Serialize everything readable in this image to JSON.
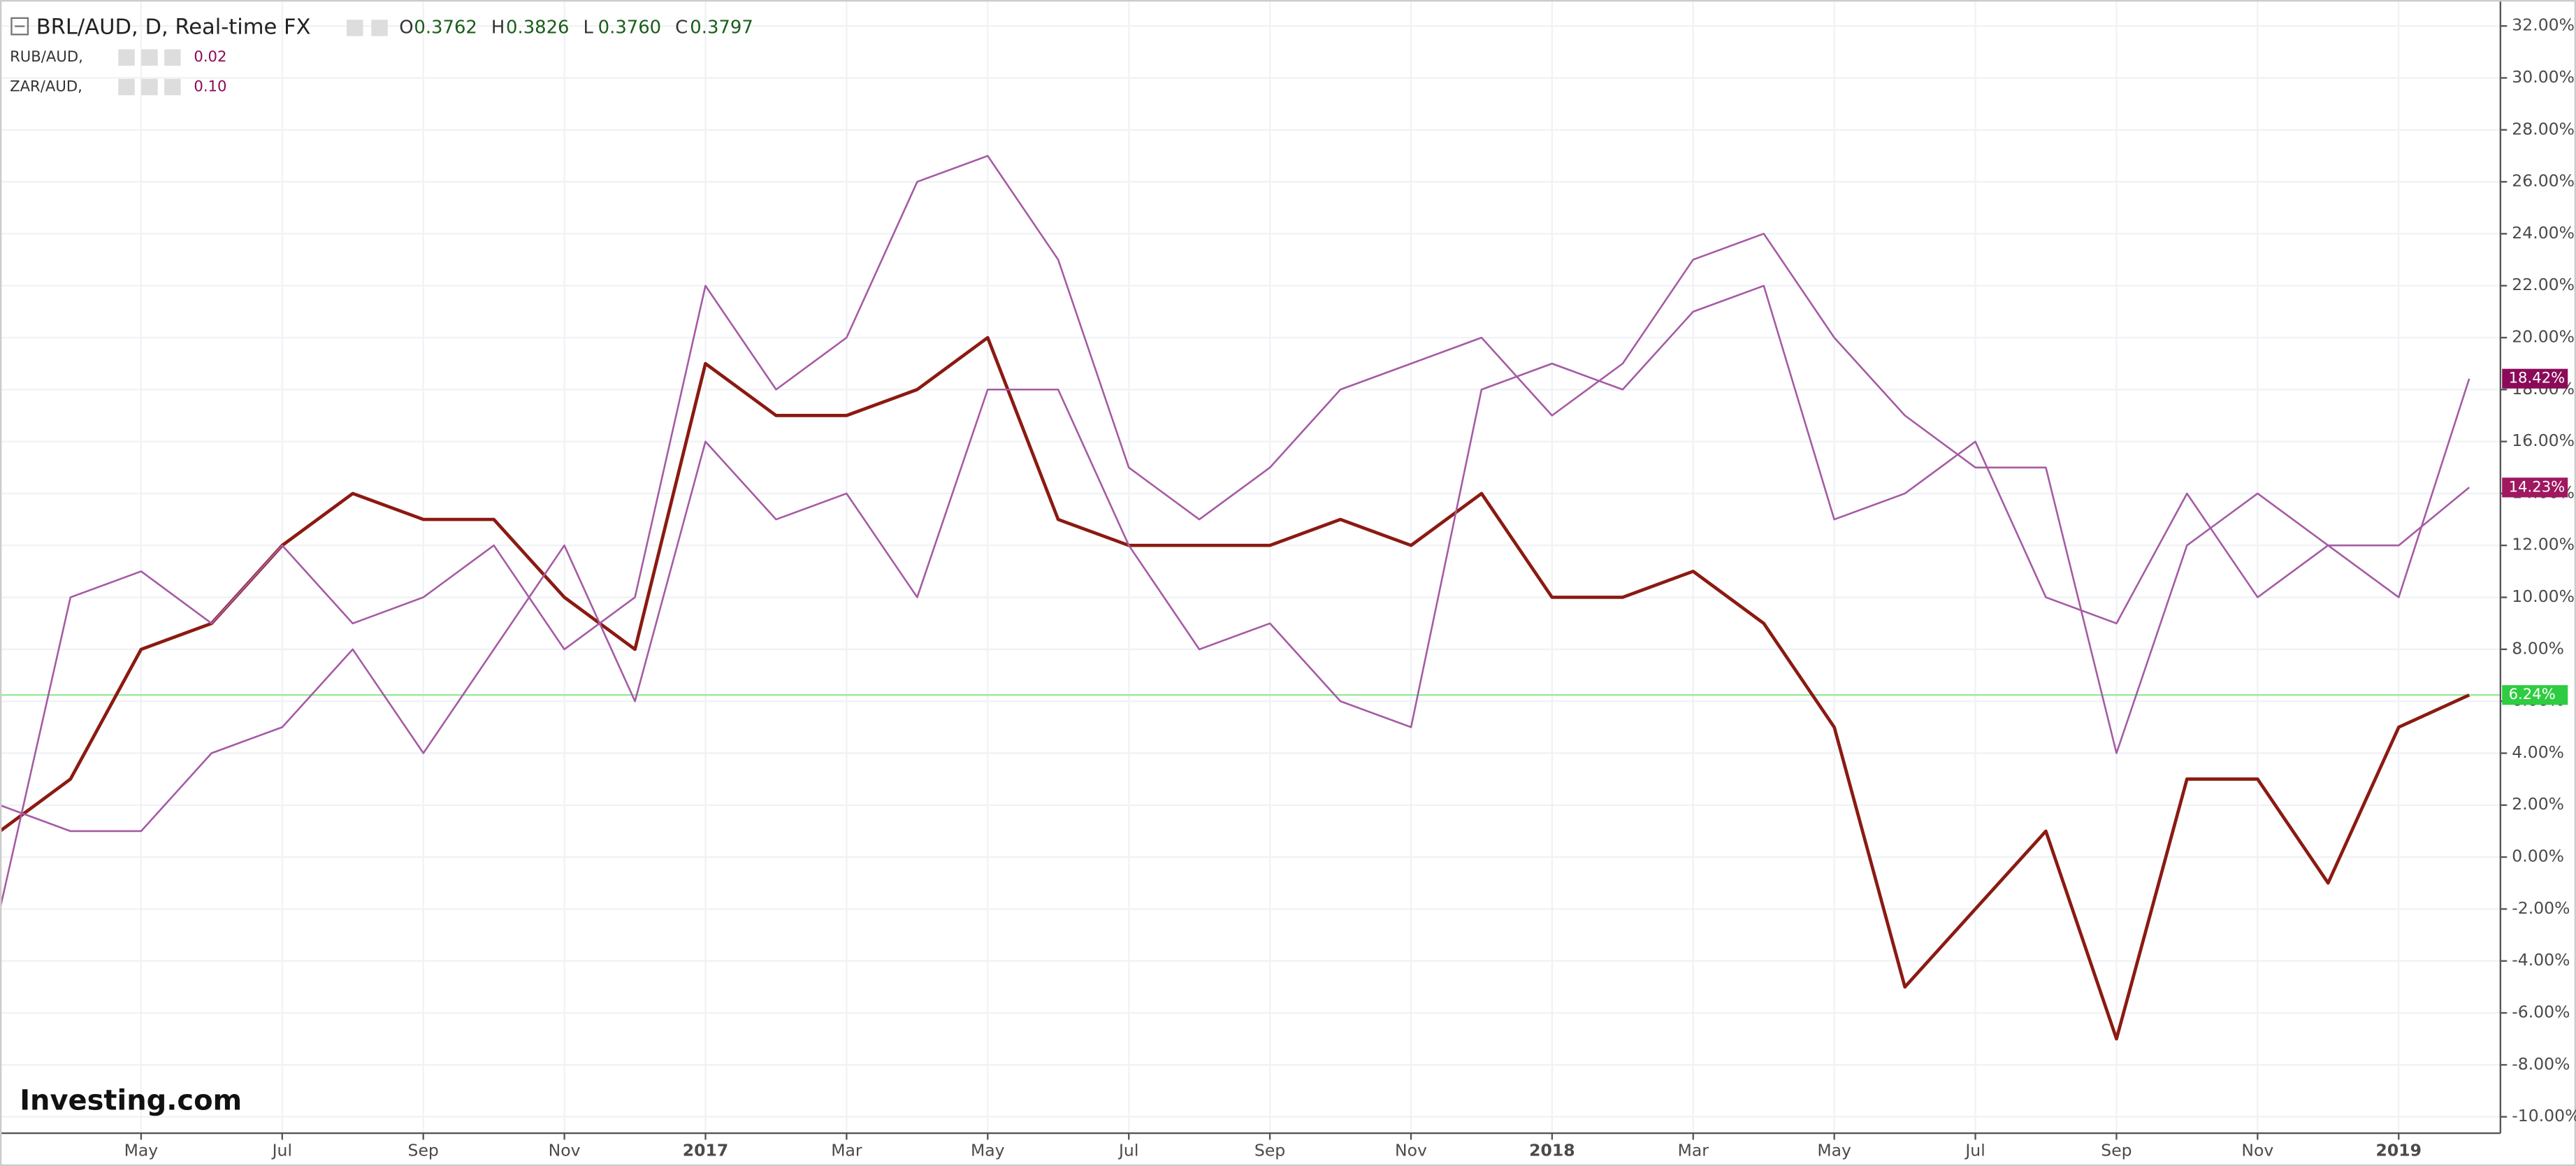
{
  "chart_data": {
    "type": "line",
    "title": "BRL/AUD, D, Real-time FX",
    "ohlc": [
      {
        "label": "O",
        "value": "0.3762"
      },
      {
        "label": "H",
        "value": "0.3826"
      },
      {
        "label": "L",
        "value": "0.3760"
      },
      {
        "label": "C",
        "value": "0.3797"
      }
    ],
    "logo": "Investing.com",
    "x": [
      "2016-03",
      "2016-04",
      "2016-05",
      "2016-06",
      "2016-07",
      "2016-08",
      "2016-09",
      "2016-10",
      "2016-11",
      "2016-12",
      "2017-01",
      "2017-02",
      "2017-03",
      "2017-04",
      "2017-05",
      "2017-06",
      "2017-07",
      "2017-08",
      "2017-09",
      "2017-10",
      "2017-11",
      "2017-12",
      "2018-01",
      "2018-02",
      "2018-03",
      "2018-04",
      "2018-05",
      "2018-06",
      "2018-07",
      "2018-08",
      "2018-09",
      "2018-10",
      "2018-11",
      "2018-12",
      "2019-01",
      "2019-02"
    ],
    "series": [
      {
        "name": "BRL/AUD",
        "color": "#8b1a12",
        "price_line_color": "#9be89b",
        "badge_color": "#2ecc40",
        "values": [
          1,
          3,
          8,
          9,
          12,
          14,
          13,
          13,
          10,
          8,
          19,
          17,
          17,
          18,
          20,
          13,
          12,
          12,
          12,
          13,
          12,
          14,
          10,
          10,
          11,
          9,
          5,
          -5,
          -2,
          1,
          -7,
          3,
          3,
          -1,
          5,
          6.24
        ],
        "value_labels": [
          null,
          null,
          null,
          null,
          null,
          null,
          null,
          null,
          null,
          null,
          null,
          null,
          null,
          null,
          null,
          null,
          null,
          null,
          null,
          null,
          null,
          null,
          null,
          null,
          null,
          null,
          null,
          null,
          null,
          null,
          null,
          null,
          null,
          null,
          null,
          "6.24%"
        ]
      },
      {
        "name": "RUB/AUD,",
        "legend_value": "0.02",
        "color": "#a55ba3",
        "badge_color": "#8b0a5a",
        "values": [
          -2,
          10,
          11,
          9,
          12,
          9,
          10,
          12,
          8,
          10,
          22,
          18,
          20,
          26,
          27,
          23,
          15,
          13,
          15,
          18,
          19,
          20,
          17,
          19,
          23,
          24,
          20,
          17,
          15,
          15,
          4,
          12,
          14,
          12,
          10,
          18.42
        ],
        "value_labels": [
          null,
          null,
          null,
          null,
          null,
          null,
          null,
          null,
          null,
          null,
          null,
          null,
          null,
          null,
          null,
          null,
          null,
          null,
          null,
          null,
          null,
          null,
          null,
          null,
          null,
          null,
          null,
          null,
          null,
          null,
          null,
          null,
          null,
          null,
          null,
          "18.42%"
        ]
      },
      {
        "name": "ZAR/AUD,",
        "legend_value": "0.10",
        "color": "#a55ba3",
        "badge_color": "#a0185f",
        "values": [
          2,
          1,
          1,
          4,
          5,
          8,
          4,
          8,
          12,
          6,
          16,
          13,
          14,
          10,
          18,
          18,
          12,
          8,
          9,
          6,
          5,
          18,
          19,
          18,
          21,
          22,
          13,
          14,
          16,
          10,
          9,
          14,
          10,
          12,
          12,
          14.23
        ],
        "value_labels": [
          null,
          null,
          null,
          null,
          null,
          null,
          null,
          null,
          null,
          null,
          null,
          null,
          null,
          null,
          null,
          null,
          null,
          null,
          null,
          null,
          null,
          null,
          null,
          null,
          null,
          null,
          null,
          null,
          null,
          null,
          null,
          null,
          null,
          null,
          null,
          "14.23%"
        ]
      }
    ],
    "xlim": [
      "2016-03",
      "2019-02"
    ],
    "xticks": [
      {
        "value": "2016-05",
        "label": "May"
      },
      {
        "value": "2016-07",
        "label": "Jul"
      },
      {
        "value": "2016-09",
        "label": "Sep"
      },
      {
        "value": "2016-11",
        "label": "Nov"
      },
      {
        "value": "2017-01",
        "label": "2017"
      },
      {
        "value": "2017-03",
        "label": "Mar"
      },
      {
        "value": "2017-05",
        "label": "May"
      },
      {
        "value": "2017-07",
        "label": "Jul"
      },
      {
        "value": "2017-09",
        "label": "Sep"
      },
      {
        "value": "2017-11",
        "label": "Nov"
      },
      {
        "value": "2018-01",
        "label": "2018"
      },
      {
        "value": "2018-03",
        "label": "Mar"
      },
      {
        "value": "2018-05",
        "label": "May"
      },
      {
        "value": "2018-07",
        "label": "Jul"
      },
      {
        "value": "2018-09",
        "label": "Sep"
      },
      {
        "value": "2018-11",
        "label": "Nov"
      },
      {
        "value": "2019-01",
        "label": "2019"
      }
    ],
    "ylim": [
      -10.63,
      33.0
    ],
    "yticks": [
      {
        "value": 32,
        "label": "32.00%"
      },
      {
        "value": 30,
        "label": "30.00%"
      },
      {
        "value": 28,
        "label": "28.00%"
      },
      {
        "value": 26,
        "label": "26.00%"
      },
      {
        "value": 24,
        "label": "24.00%"
      },
      {
        "value": 22,
        "label": "22.00%"
      },
      {
        "value": 20,
        "label": "20.00%"
      },
      {
        "value": 18,
        "label": "18.00%"
      },
      {
        "value": 16,
        "label": "16.00%"
      },
      {
        "value": 14,
        "label": "14.00%"
      },
      {
        "value": 12,
        "label": "12.00%"
      },
      {
        "value": 10,
        "label": "10.00%"
      },
      {
        "value": 8,
        "label": "8.00%"
      },
      {
        "value": 6,
        "label": "6.00%"
      },
      {
        "value": 4,
        "label": "4.00%"
      },
      {
        "value": 2,
        "label": "2.00%"
      },
      {
        "value": 0,
        "label": "0.00%"
      },
      {
        "value": -2,
        "label": "-2.00%"
      },
      {
        "value": -4,
        "label": "-4.00%"
      },
      {
        "value": -6,
        "label": "-6.00%"
      },
      {
        "value": -8,
        "label": "-8.00%"
      },
      {
        "value": -10,
        "label": "-10.00%"
      }
    ],
    "grid": true
  }
}
